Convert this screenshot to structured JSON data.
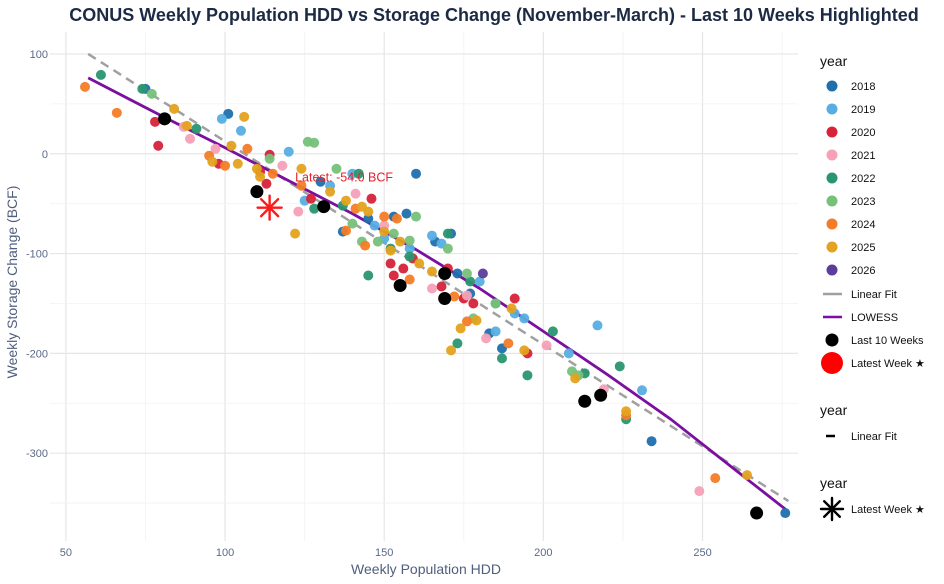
{
  "chart_data": {
    "type": "scatter",
    "title": "CONUS Weekly Population HDD vs Storage Change (November-March) - Last 10 Weeks Highlighted",
    "xlabel": "Weekly Population HDD",
    "ylabel": "Weekly Storage Change (BCF)",
    "xlim": [
      45,
      280
    ],
    "ylim": [
      -388,
      122
    ],
    "x_ticks": [
      50,
      100,
      150,
      200,
      250
    ],
    "y_ticks": [
      100,
      0,
      -100,
      -200,
      -300
    ],
    "x_tick_labels": [
      "50",
      "100",
      "150",
      "200",
      "250"
    ],
    "y_tick_labels": [
      "100",
      "0",
      "-100",
      "-200",
      "-300"
    ],
    "grid": true,
    "legend_position": "right",
    "series": [
      {
        "name": "2018",
        "color": "#1f6fad",
        "points": [
          [
            75,
            65
          ],
          [
            101,
            40
          ],
          [
            130,
            -28
          ],
          [
            137,
            -78
          ],
          [
            145,
            -65
          ],
          [
            153,
            -63
          ],
          [
            157,
            -60
          ],
          [
            160,
            -20
          ],
          [
            166,
            -88
          ],
          [
            171,
            -80
          ],
          [
            173,
            -120
          ],
          [
            177,
            -140
          ],
          [
            183,
            -180
          ],
          [
            187,
            -195
          ],
          [
            234,
            -288
          ],
          [
            276,
            -360
          ]
        ]
      },
      {
        "name": "2019",
        "color": "#56aee2",
        "points": [
          [
            99,
            35
          ],
          [
            105,
            23
          ],
          [
            120,
            2
          ],
          [
            125,
            -47
          ],
          [
            133,
            -32
          ],
          [
            140,
            -20
          ],
          [
            147,
            -72
          ],
          [
            150,
            -85
          ],
          [
            158,
            -95
          ],
          [
            165,
            -82
          ],
          [
            168,
            -90
          ],
          [
            180,
            -128
          ],
          [
            185,
            -178
          ],
          [
            191,
            -160
          ],
          [
            194,
            -165
          ],
          [
            208,
            -200
          ],
          [
            217,
            -172
          ],
          [
            231,
            -237
          ]
        ]
      },
      {
        "name": "2020",
        "color": "#d6233a",
        "points": [
          [
            78,
            32
          ],
          [
            79,
            8
          ],
          [
            98,
            -10
          ],
          [
            111,
            -18
          ],
          [
            113,
            -30
          ],
          [
            114,
            -1
          ],
          [
            127,
            -45
          ],
          [
            146,
            -45
          ],
          [
            152,
            -110
          ],
          [
            153,
            -122
          ],
          [
            156,
            -115
          ],
          [
            159,
            -105
          ],
          [
            168,
            -133
          ],
          [
            170,
            -115
          ],
          [
            175,
            -145
          ],
          [
            178,
            -150
          ],
          [
            191,
            -145
          ],
          [
            195,
            -200
          ]
        ]
      },
      {
        "name": "2021",
        "color": "#f6a1b8",
        "points": [
          [
            87,
            27
          ],
          [
            89,
            15
          ],
          [
            97,
            5
          ],
          [
            118,
            -12
          ],
          [
            123,
            -58
          ],
          [
            141,
            -40
          ],
          [
            150,
            -72
          ],
          [
            165,
            -135
          ],
          [
            176,
            -142
          ],
          [
            182,
            -185
          ],
          [
            201,
            -192
          ],
          [
            219,
            -236
          ],
          [
            249,
            -338
          ]
        ]
      },
      {
        "name": "2022",
        "color": "#2a9670",
        "points": [
          [
            61,
            79
          ],
          [
            74,
            65
          ],
          [
            91,
            25
          ],
          [
            128,
            -55
          ],
          [
            137,
            -52
          ],
          [
            142,
            -20
          ],
          [
            145,
            -122
          ],
          [
            152,
            -95
          ],
          [
            158,
            -103
          ],
          [
            170,
            -80
          ],
          [
            173,
            -190
          ],
          [
            177,
            -128
          ],
          [
            185,
            -150
          ],
          [
            187,
            -205
          ],
          [
            195,
            -222
          ],
          [
            203,
            -178
          ],
          [
            213,
            -220
          ],
          [
            224,
            -213
          ],
          [
            226,
            -266
          ]
        ]
      },
      {
        "name": "2023",
        "color": "#76c17a",
        "points": [
          [
            77,
            60
          ],
          [
            114,
            -5
          ],
          [
            126,
            12
          ],
          [
            128,
            11
          ],
          [
            135,
            -15
          ],
          [
            140,
            -70
          ],
          [
            143,
            -88
          ],
          [
            148,
            -88
          ],
          [
            153,
            -80
          ],
          [
            158,
            -87
          ],
          [
            160,
            -63
          ],
          [
            170,
            -95
          ],
          [
            176,
            -120
          ],
          [
            178,
            -165
          ],
          [
            185,
            -150
          ],
          [
            209,
            -218
          ],
          [
            211,
            -222
          ]
        ]
      },
      {
        "name": "2024",
        "color": "#f47c27",
        "points": [
          [
            56,
            67
          ],
          [
            66,
            41
          ],
          [
            95,
            -2
          ],
          [
            100,
            -12
          ],
          [
            107,
            5
          ],
          [
            115,
            -20
          ],
          [
            124,
            -32
          ],
          [
            138,
            -77
          ],
          [
            141,
            -55
          ],
          [
            144,
            -92
          ],
          [
            150,
            -63
          ],
          [
            154,
            -65
          ],
          [
            158,
            -126
          ],
          [
            172,
            -143
          ],
          [
            176,
            -168
          ],
          [
            189,
            -190
          ],
          [
            226,
            -262
          ],
          [
            254,
            -325
          ]
        ]
      },
      {
        "name": "2025",
        "color": "#e3a21f",
        "points": [
          [
            84,
            45
          ],
          [
            88,
            28
          ],
          [
            96,
            -8
          ],
          [
            102,
            8
          ],
          [
            104,
            -10
          ],
          [
            106,
            37
          ],
          [
            110,
            -15
          ],
          [
            111,
            -23
          ],
          [
            122,
            -80
          ],
          [
            124,
            -15
          ],
          [
            133,
            -38
          ],
          [
            138,
            -47
          ],
          [
            143,
            -53
          ],
          [
            145,
            -58
          ],
          [
            150,
            -78
          ],
          [
            152,
            -97
          ],
          [
            155,
            -88
          ],
          [
            161,
            -110
          ],
          [
            165,
            -118
          ],
          [
            171,
            -197
          ],
          [
            174,
            -175
          ],
          [
            179,
            -167
          ],
          [
            190,
            -155
          ],
          [
            194,
            -197
          ],
          [
            210,
            -225
          ],
          [
            226,
            -258
          ],
          [
            264,
            -322
          ]
        ]
      },
      {
        "name": "2026",
        "color": "#5b3c9a",
        "points": [
          [
            181,
            -120
          ]
        ]
      }
    ],
    "last_10_weeks": {
      "name": "Last 10 Weeks",
      "color": "#000000",
      "points": [
        [
          81,
          35
        ],
        [
          110,
          -38
        ],
        [
          131,
          -53
        ],
        [
          155,
          -132
        ],
        [
          169,
          -145
        ],
        [
          169,
          -120
        ],
        [
          213,
          -248
        ],
        [
          218,
          -242
        ],
        [
          267,
          -360
        ]
      ]
    },
    "latest_week": {
      "name": "Latest Week ★",
      "color": "#ff1a1a",
      "x": 114,
      "y": -54
    },
    "annotation": {
      "text": "Latest: -54.0 BCF",
      "x": 122,
      "y": -28,
      "color": "#e8202a"
    },
    "linear_fit": {
      "name": "Linear Fit",
      "color": "#a0a0a0",
      "x": [
        57,
        277
      ],
      "y": [
        100,
        -348
      ]
    },
    "lowess": {
      "name": "LOWESS",
      "color": "#7b0fa0",
      "x": [
        57,
        80,
        100,
        120,
        140,
        160,
        180,
        200,
        220,
        240,
        260,
        276
      ],
      "y": [
        76,
        38,
        6,
        -27,
        -60,
        -96,
        -135,
        -178,
        -221,
        -266,
        -316,
        -356
      ]
    },
    "legend": {
      "title_color": "year",
      "title_linetype": "year",
      "title_shape": "year",
      "linear_fit_label": "Linear Fit",
      "lowess_label": "LOWESS",
      "last10_label": "Last 10 Weeks",
      "latest_label": "Latest Week ★"
    }
  }
}
